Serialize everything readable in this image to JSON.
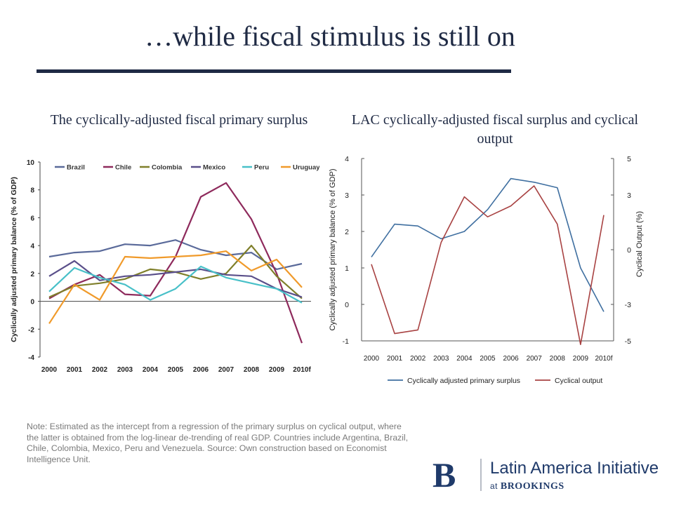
{
  "slide": {
    "title": "…while fiscal stimulus is still on",
    "left_subtitle": "The cyclically-adjusted fiscal primary surplus",
    "right_subtitle": "LAC cyclically-adjusted fiscal surplus and cyclical output",
    "note": "Note: Estimated as the intercept from a regression of the primary surplus on cyclical output, where the latter is obtained from the log-linear de-trending of real GDP. Countries include Argentina, Brazil, Chile, Colombia, Mexico, Peru and Venezuela. Source: Own construction based on Economist Intelligence Unit."
  },
  "logo": {
    "mark": "B",
    "name": "Latin America Initiative",
    "sub_prefix": "at",
    "sub_org": "BROOKINGS"
  },
  "chart_data": [
    {
      "type": "line",
      "title": "",
      "ylabel": "Cyclically adjusted primary balance (% of GDP)",
      "xlabel": "",
      "categories": [
        "2000",
        "2001",
        "2002",
        "2003",
        "2004",
        "2005",
        "2006",
        "2007",
        "2008",
        "2009",
        "2010f"
      ],
      "ylim": [
        -4,
        10
      ],
      "yticks": [
        "-4",
        "-2",
        "0",
        "2",
        "4",
        "6",
        "8",
        "10"
      ],
      "grid": false,
      "legend": "top",
      "series": [
        {
          "name": "Brazil",
          "color": "#5a6a9a",
          "values": [
            3.2,
            3.5,
            3.6,
            4.1,
            4.0,
            4.4,
            3.7,
            3.3,
            3.5,
            2.3,
            2.7
          ]
        },
        {
          "name": "Chile",
          "color": "#8e2a5c",
          "values": [
            0.2,
            1.2,
            1.9,
            0.5,
            0.4,
            3.2,
            7.5,
            8.5,
            5.9,
            2.0,
            -3.0
          ]
        },
        {
          "name": "Colombia",
          "color": "#7f7f2a",
          "values": [
            0.3,
            1.1,
            1.3,
            1.6,
            2.3,
            2.1,
            1.6,
            2.0,
            4.0,
            1.8,
            0.2
          ]
        },
        {
          "name": "Mexico",
          "color": "#5a4f8a",
          "values": [
            1.8,
            2.9,
            1.5,
            1.8,
            1.9,
            2.1,
            2.3,
            1.9,
            1.8,
            0.9,
            0.3
          ]
        },
        {
          "name": "Peru",
          "color": "#48c0c8",
          "values": [
            0.7,
            2.4,
            1.7,
            1.2,
            0.1,
            0.9,
            2.5,
            1.7,
            1.3,
            0.9,
            -0.1
          ]
        },
        {
          "name": "Uruguay",
          "color": "#f09a2a",
          "values": [
            -1.6,
            1.2,
            0.1,
            3.2,
            3.1,
            3.2,
            3.3,
            3.6,
            2.2,
            3.0,
            1.0
          ]
        }
      ]
    },
    {
      "type": "line",
      "title": "",
      "xlabel": "",
      "ylabel": "Cyclically adjusted primary balance (% of GDP)",
      "y2label": "Cyclical Output (%)",
      "categories": [
        "2000",
        "2001",
        "2002",
        "2003",
        "2004",
        "2005",
        "2006",
        "2007",
        "2008",
        "2009",
        "2010f"
      ],
      "ylim": [
        -1,
        4
      ],
      "yticks": [
        "-1",
        "0",
        "1",
        "2",
        "3",
        "4"
      ],
      "y2lim": [
        -5,
        5
      ],
      "y2ticks": [
        "-5",
        "-3",
        "0",
        "3",
        "5"
      ],
      "grid": false,
      "legend": "bottom",
      "series": [
        {
          "name": "Cyclically adjusted primary surplus",
          "color": "#3f6fa0",
          "axis": "left",
          "values": [
            1.3,
            2.2,
            2.15,
            1.8,
            2.0,
            2.6,
            3.45,
            3.35,
            3.2,
            1.0,
            -0.2
          ]
        },
        {
          "name": "Cyclical output",
          "color": "#a84242",
          "axis": "right",
          "values": [
            -0.8,
            -4.6,
            -4.4,
            0.4,
            2.9,
            1.8,
            2.4,
            3.5,
            1.4,
            -5.2,
            1.9
          ]
        }
      ]
    }
  ]
}
